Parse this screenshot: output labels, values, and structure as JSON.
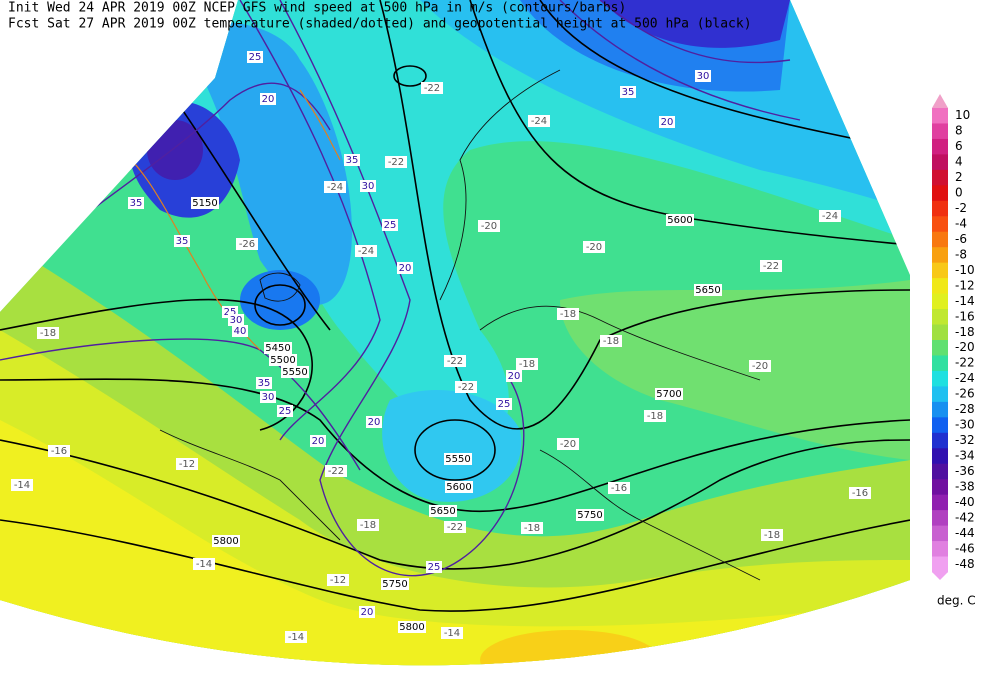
{
  "header": {
    "line1": "Init  Wed 24 APR 2019 00Z  NCEP GFS wind speed at 500 hPa in m/s (contours/barbs)",
    "line2": "Fcst Sat 27 APR 2019 00Z  temperature (shaded/dotted) and geopotential height at 500 hPa (black)"
  },
  "map_labels": {
    "height": [
      "5150",
      "5600",
      "5650",
      "5700",
      "5450",
      "5500",
      "5550",
      "5550",
      "5600",
      "5650",
      "5750",
      "5800",
      "5750",
      "5800"
    ],
    "wind": [
      "25",
      "20",
      "35",
      "30",
      "20",
      "35",
      "30",
      "25",
      "20",
      "35",
      "35",
      "25",
      "30",
      "40",
      "35",
      "30",
      "25",
      "20",
      "20",
      "20",
      "25",
      "25",
      "20"
    ],
    "temperature": [
      "-22",
      "-24",
      "-22",
      "-24",
      "-26",
      "-24",
      "-20",
      "-20",
      "-22",
      "-24",
      "-18",
      "-16",
      "-14",
      "-12",
      "-22",
      "-22",
      "-18",
      "-18",
      "-20",
      "-18",
      "-16",
      "-20",
      "-18",
      "-22",
      "-18",
      "-14",
      "-12",
      "-14",
      "-14",
      "-18",
      "-16",
      "-18",
      "-22"
    ]
  },
  "colorbar": {
    "labels": [
      "10",
      "8",
      "6",
      "4",
      "2",
      "0",
      "-2",
      "-4",
      "-6",
      "-8",
      "-10",
      "-12",
      "-14",
      "-16",
      "-18",
      "-20",
      "-22",
      "-24",
      "-26",
      "-28",
      "-30",
      "-32",
      "-34",
      "-36",
      "-38",
      "-40",
      "-42",
      "-44",
      "-46",
      "-48"
    ],
    "colors": [
      "#f070c0",
      "#e040a0",
      "#d02080",
      "#c01060",
      "#d01030",
      "#e01010",
      "#f03010",
      "#f85010",
      "#f87810",
      "#f8a010",
      "#f8c818",
      "#f0e818",
      "#e0f020",
      "#c0e830",
      "#a0e040",
      "#60e070",
      "#30e0a0",
      "#20e0e0",
      "#20c0f0",
      "#1890f0",
      "#1060f0",
      "#2030d0",
      "#3010b0",
      "#5010a0",
      "#7010a0",
      "#9020b0",
      "#b040c0",
      "#c860d0",
      "#e080e0",
      "#f0a0f0"
    ],
    "unit": "deg. C"
  }
}
